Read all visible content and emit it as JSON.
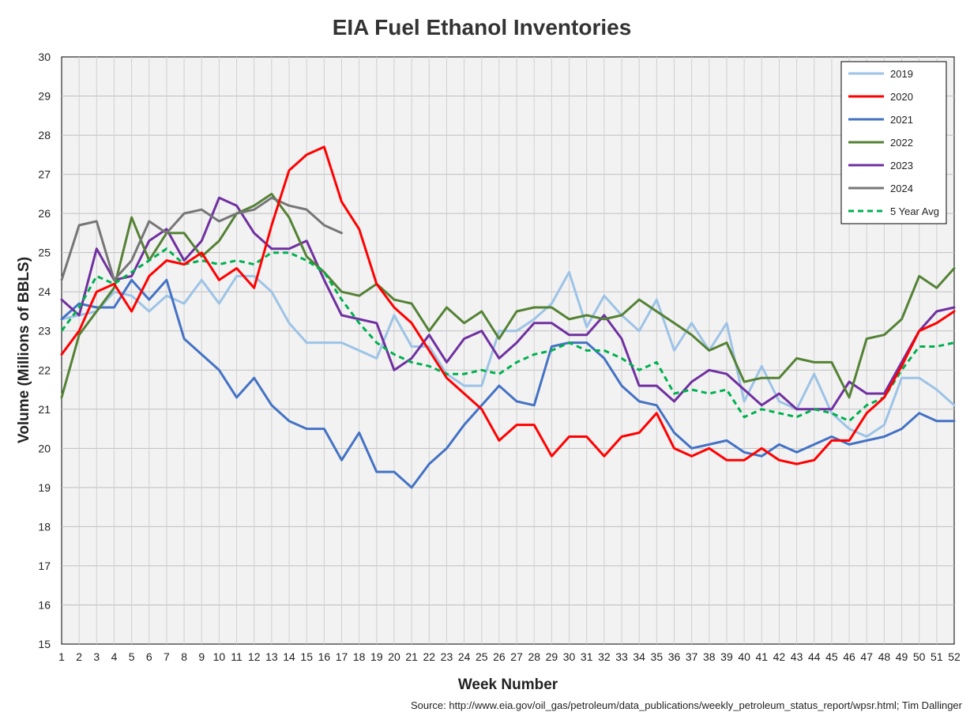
{
  "chart_data": {
    "type": "line",
    "title": "EIA Fuel Ethanol Inventories",
    "xlabel": "Week Number",
    "ylabel": "Volume (Millions of BBLS)",
    "ylim": [
      15,
      30
    ],
    "xlim": [
      1,
      52
    ],
    "yticks": [
      "15",
      "16",
      "17",
      "18",
      "19",
      "20",
      "21",
      "22",
      "23",
      "24",
      "25",
      "26",
      "27",
      "28",
      "29",
      "30"
    ],
    "xticks": [
      "1",
      "2",
      "3",
      "4",
      "5",
      "6",
      "7",
      "8",
      "9",
      "10",
      "11",
      "12",
      "13",
      "14",
      "15",
      "16",
      "17",
      "18",
      "19",
      "20",
      "21",
      "22",
      "23",
      "24",
      "25",
      "26",
      "27",
      "28",
      "29",
      "30",
      "31",
      "32",
      "33",
      "34",
      "35",
      "36",
      "37",
      "38",
      "39",
      "40",
      "41",
      "42",
      "43",
      "44",
      "45",
      "46",
      "47",
      "48",
      "49",
      "50",
      "51",
      "52"
    ],
    "grid": true,
    "legend_position": "top-right",
    "source": "Source: http://www.eia.gov/oil_gas/petroleum/data_publications/weekly_petroleum_status_report/wpsr.html; Tim Dallinger",
    "series": [
      {
        "name": "2019",
        "color": "#9dc3e6",
        "dashed": false,
        "values": [
          23.3,
          23.4,
          23.5,
          24.0,
          23.9,
          23.5,
          23.9,
          23.7,
          24.3,
          23.7,
          24.4,
          24.4,
          24.0,
          23.2,
          22.7,
          22.7,
          22.7,
          22.5,
          22.3,
          23.4,
          22.6,
          22.6,
          21.9,
          21.6,
          21.6,
          23.0,
          23.0,
          23.3,
          23.7,
          24.5,
          23.1,
          23.9,
          23.4,
          23.0,
          23.8,
          22.5,
          23.2,
          22.5,
          23.2,
          21.2,
          22.1,
          21.2,
          21.0,
          21.9,
          20.9,
          20.5,
          20.3,
          20.6,
          21.8,
          21.8,
          21.5,
          21.1
        ]
      },
      {
        "name": "2020",
        "color": "#ff0000",
        "dashed": false,
        "values": [
          22.4,
          23.0,
          24.0,
          24.2,
          23.5,
          24.4,
          24.8,
          24.7,
          25.0,
          24.3,
          24.6,
          24.1,
          25.7,
          27.1,
          27.5,
          27.7,
          26.3,
          25.6,
          24.2,
          23.6,
          23.2,
          22.5,
          21.8,
          21.4,
          21.0,
          20.2,
          20.6,
          20.6,
          19.8,
          20.3,
          20.3,
          19.8,
          20.3,
          20.4,
          20.9,
          20.0,
          19.8,
          20.0,
          19.7,
          19.7,
          20.0,
          19.7,
          19.6,
          19.7,
          20.2,
          20.2,
          20.9,
          21.3,
          22.1,
          23.0,
          23.2,
          23.5
        ]
      },
      {
        "name": "2021",
        "color": "#4472c4",
        "dashed": false,
        "values": [
          23.3,
          23.7,
          23.6,
          23.6,
          24.3,
          23.8,
          24.3,
          22.8,
          22.4,
          22.0,
          21.3,
          21.8,
          21.1,
          20.7,
          20.5,
          20.5,
          19.7,
          20.4,
          19.4,
          19.4,
          19.0,
          19.6,
          20.0,
          20.6,
          21.1,
          21.6,
          21.2,
          21.1,
          22.6,
          22.7,
          22.7,
          22.3,
          21.6,
          21.2,
          21.1,
          20.4,
          20.0,
          20.1,
          20.2,
          19.9,
          19.8,
          20.1,
          19.9,
          20.1,
          20.3,
          20.1,
          20.2,
          20.3,
          20.5,
          20.9,
          20.7,
          20.7
        ]
      },
      {
        "name": "2022",
        "color": "#548235",
        "dashed": false,
        "values": [
          21.3,
          22.9,
          23.5,
          24.1,
          25.9,
          24.8,
          25.5,
          25.5,
          24.9,
          25.3,
          26.0,
          26.2,
          26.5,
          25.9,
          24.9,
          24.5,
          24.0,
          23.9,
          24.2,
          23.8,
          23.7,
          23.0,
          23.6,
          23.2,
          23.5,
          22.8,
          23.5,
          23.6,
          23.6,
          23.3,
          23.4,
          23.3,
          23.4,
          23.8,
          23.5,
          23.2,
          22.9,
          22.5,
          22.7,
          21.7,
          21.8,
          21.8,
          22.3,
          22.2,
          22.2,
          21.3,
          22.8,
          22.9,
          23.3,
          24.4,
          24.1,
          24.6
        ]
      },
      {
        "name": "2023",
        "color": "#7030a0",
        "dashed": false,
        "values": [
          23.8,
          23.4,
          25.1,
          24.3,
          24.4,
          25.3,
          25.6,
          24.8,
          25.3,
          26.4,
          26.2,
          25.5,
          25.1,
          25.1,
          25.3,
          24.3,
          23.4,
          23.3,
          23.2,
          22.0,
          22.3,
          22.9,
          22.2,
          22.8,
          23.0,
          22.3,
          22.7,
          23.2,
          23.2,
          22.9,
          22.9,
          23.4,
          22.8,
          21.6,
          21.6,
          21.2,
          21.7,
          22.0,
          21.9,
          21.5,
          21.1,
          21.4,
          21.0,
          21.0,
          21.0,
          21.7,
          21.4,
          21.4,
          22.2,
          23.0,
          23.5,
          23.6
        ]
      },
      {
        "name": "2024",
        "color": "#767676",
        "dashed": false,
        "values": [
          24.3,
          25.7,
          25.8,
          24.3,
          24.8,
          25.8,
          25.5,
          26.0,
          26.1,
          25.8,
          26.0,
          26.1,
          26.4,
          26.2,
          26.1,
          25.7,
          25.5
        ]
      },
      {
        "name": "5 Year Avg",
        "color": "#00b050",
        "dashed": true,
        "values": [
          23.0,
          23.6,
          24.4,
          24.2,
          24.5,
          24.8,
          25.1,
          24.7,
          24.8,
          24.7,
          24.8,
          24.7,
          25.0,
          25.0,
          24.8,
          24.5,
          23.8,
          23.2,
          22.7,
          22.4,
          22.2,
          22.1,
          21.9,
          21.9,
          22.0,
          21.9,
          22.2,
          22.4,
          22.5,
          22.7,
          22.5,
          22.5,
          22.3,
          22.0,
          22.2,
          21.4,
          21.5,
          21.4,
          21.5,
          20.8,
          21.0,
          20.9,
          20.8,
          21.0,
          20.9,
          20.7,
          21.1,
          21.3,
          22.0,
          22.6,
          22.6,
          22.7
        ]
      }
    ]
  }
}
